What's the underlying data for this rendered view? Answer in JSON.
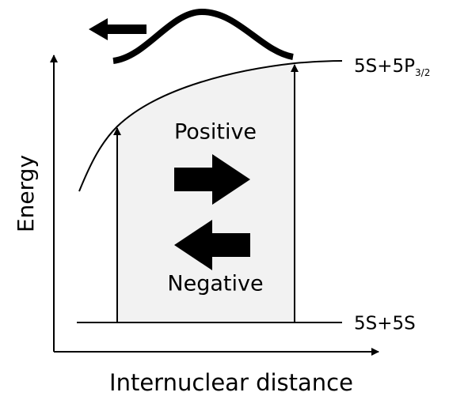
{
  "levels": {
    "upper": {
      "text": "5S+5P",
      "subscript": "3/2"
    },
    "lower": "5S+5S"
  },
  "arrows": {
    "positive": "Positive",
    "negative": "Negative"
  },
  "axes": {
    "y": "Energy",
    "x": "Internuclear distance"
  }
}
